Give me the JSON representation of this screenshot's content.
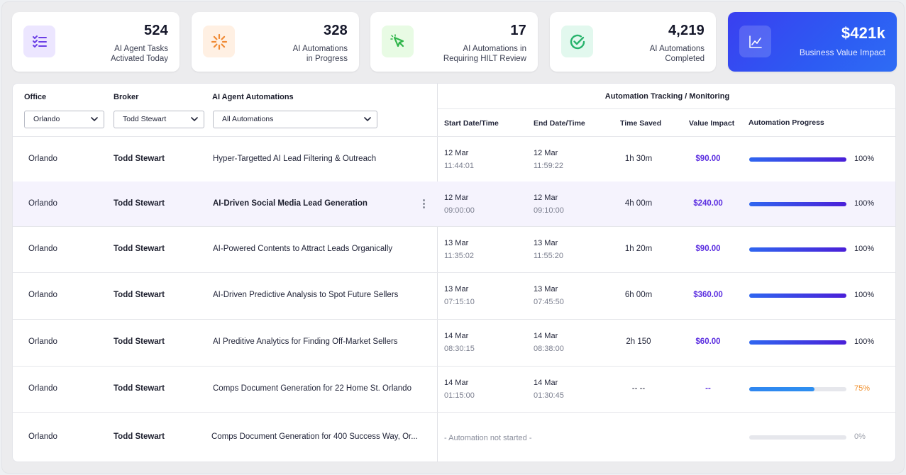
{
  "stats": [
    {
      "value": "524",
      "label": "AI Agent Tasks\nActivated Today",
      "icon": "checklist-icon",
      "icon_bg": "#ece6ff",
      "icon_color": "#6b3fe6"
    },
    {
      "value": "328",
      "label": "AI Automations\nin Progress",
      "icon": "spinner-icon",
      "icon_bg": "#fff0e3",
      "icon_color": "#f08a34"
    },
    {
      "value": "17",
      "label": "AI Automations in\nRequiring HILT Review",
      "icon": "cursor-click-icon",
      "icon_bg": "#e8fbe4",
      "icon_color": "#2fb54a"
    },
    {
      "value": "4,219",
      "label": "AI Automations\nCompleted",
      "icon": "check-circle-icon",
      "icon_bg": "#e2f8ee",
      "icon_color": "#27b36c"
    },
    {
      "value": "$421k",
      "label": "Business Value Impact",
      "icon": "chart-line-icon"
    }
  ],
  "filters": {
    "office_label": "Office",
    "broker_label": "Broker",
    "automations_label": "AI Agent Automations",
    "office_value": "Orlando",
    "broker_value": "Todd Stewart",
    "automations_value": "All Automations"
  },
  "tracking": {
    "group_title": "Automation Tracking / Monitoring",
    "col_start": "Start Date/Time",
    "col_end": "End Date/Time",
    "col_saved": "Time Saved",
    "col_value": "Value Impact",
    "col_progress": "Automation Progress"
  },
  "rows": [
    {
      "office": "Orlando",
      "broker": "Todd Stewart",
      "automation": "Hyper-Targetted AI Lead Filtering & Outreach",
      "start_date": "12 Mar",
      "start_time": "11:44:01",
      "end_date": "12 Mar",
      "end_time": "11:59:22",
      "saved": "1h 30m",
      "value": "$90.00",
      "progress": 100,
      "progress_label": "100%"
    },
    {
      "office": "Orlando",
      "broker": "Todd Stewart",
      "automation": "AI-Driven Social Media Lead Generation",
      "start_date": "12 Mar",
      "start_time": "09:00:00",
      "end_date": "12 Mar",
      "end_time": "09:10:00",
      "saved": "4h 00m",
      "value": "$240.00",
      "progress": 100,
      "progress_label": "100%"
    },
    {
      "office": "Orlando",
      "broker": "Todd Stewart",
      "automation": "AI-Powered Contents to Attract Leads Organically",
      "start_date": "13 Mar",
      "start_time": "11:35:02",
      "end_date": "13 Mar",
      "end_time": "11:55:20",
      "saved": "1h 20m",
      "value": "$90.00",
      "progress": 100,
      "progress_label": "100%"
    },
    {
      "office": "Orlando",
      "broker": "Todd Stewart",
      "automation": "AI-Driven Predictive Analysis to Spot Future Sellers",
      "start_date": "13 Mar",
      "start_time": "07:15:10",
      "end_date": "13 Mar",
      "end_time": "07:45:50",
      "saved": "6h 00m",
      "value": "$360.00",
      "progress": 100,
      "progress_label": "100%"
    },
    {
      "office": "Orlando",
      "broker": "Todd Stewart",
      "automation": "AI Preditive Analytics for Finding Off-Market Sellers",
      "start_date": "14 Mar",
      "start_time": "08:30:15",
      "end_date": "14 Mar",
      "end_time": "08:38:00",
      "saved": "2h 150",
      "value": "$60.00",
      "progress": 100,
      "progress_label": "100%"
    },
    {
      "office": "Orlando",
      "broker": "Todd Stewart",
      "automation": "Comps Document Generation for 22 Home St. Orlando",
      "start_date": "14 Mar",
      "start_time": "01:15:00",
      "end_date": "14 Mar",
      "end_time": "01:30:45",
      "saved": "-- --",
      "value": "--",
      "progress": 75,
      "progress_label": "75%"
    },
    {
      "office": "Orlando",
      "broker": "Todd Stewart",
      "automation": "Comps Document Generation for 400 Success Way, Or...",
      "not_started": "- Automation not started -",
      "progress": 0,
      "progress_label": "0%"
    }
  ],
  "colors": {
    "accent": "#5b2ee0",
    "bar_full_start": "#2f66f0",
    "bar_full_end": "#4a1fd8",
    "bar_partial": "#2e8ff0",
    "partial_text": "#f0902e",
    "zero_text": "#9a9ea9"
  }
}
